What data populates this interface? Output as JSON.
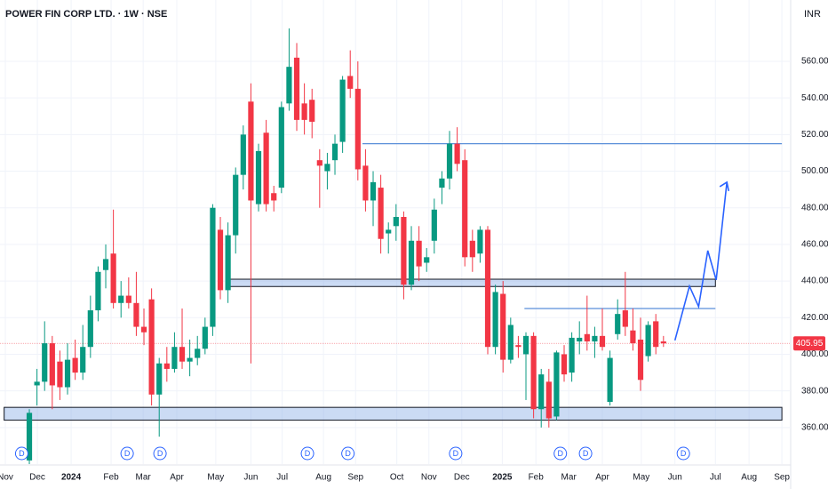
{
  "chart_data": {
    "type": "candlestick",
    "title": "POWER FIN CORP LTD. · 1W · NSE",
    "currency": "INR",
    "up_color": "#089981",
    "down_color": "#f23645",
    "open": [
      342,
      383,
      385,
      406,
      396,
      382,
      398,
      390,
      404,
      424,
      446,
      455,
      428,
      432,
      428,
      415,
      430,
      378,
      395,
      392,
      404,
      396,
      398,
      403,
      415,
      468,
      435,
      465,
      498,
      538,
      482,
      521,
      488,
      491,
      537,
      562,
      537,
      539,
      506,
      500,
      506,
      516,
      552,
      545,
      503,
      484,
      491,
      466,
      470,
      475,
      438,
      462,
      450,
      462,
      491,
      496,
      515,
      506,
      462,
      455,
      468,
      404,
      433,
      397,
      405,
      400,
      410,
      370,
      385,
      366,
      400,
      390,
      407,
      411,
      407,
      410,
      374,
      411,
      424,
      413,
      408,
      399,
      418,
      407
    ],
    "high": [
      370,
      392,
      418,
      410,
      402,
      406,
      408,
      416,
      432,
      448,
      460,
      479,
      440,
      442,
      445,
      425,
      436,
      398,
      404,
      412,
      425,
      408,
      410,
      420,
      482,
      475,
      472,
      502,
      525,
      548,
      515,
      528,
      492,
      538,
      578,
      570,
      548,
      545,
      512,
      510,
      520,
      552,
      566,
      560,
      512,
      500,
      498,
      472,
      482,
      478,
      470,
      470,
      458,
      485,
      500,
      522,
      524,
      512,
      468,
      470,
      470,
      438,
      440,
      420,
      410,
      412,
      412,
      392,
      392,
      402,
      405,
      412,
      418,
      432,
      415,
      425,
      402,
      430,
      445,
      425,
      420,
      418,
      422,
      410
    ],
    "low": [
      340,
      372,
      380,
      370,
      375,
      378,
      386,
      386,
      398,
      418,
      436,
      425,
      420,
      425,
      410,
      405,
      372,
      355,
      385,
      390,
      392,
      388,
      394,
      400,
      410,
      430,
      428,
      455,
      490,
      395,
      478,
      478,
      478,
      488,
      533,
      522,
      520,
      518,
      480,
      490,
      498,
      510,
      540,
      495,
      478,
      470,
      455,
      455,
      462,
      430,
      435,
      440,
      445,
      455,
      482,
      490,
      500,
      448,
      445,
      450,
      400,
      400,
      390,
      395,
      398,
      375,
      365,
      360,
      360,
      364,
      385,
      385,
      400,
      402,
      398,
      402,
      372,
      408,
      410,
      402,
      380,
      396,
      400,
      404
    ],
    "close": [
      368,
      385,
      406,
      383,
      382,
      397,
      390,
      404,
      424,
      445,
      452,
      428,
      432,
      428,
      415,
      412,
      378,
      395,
      392,
      404,
      396,
      398,
      403,
      415,
      480,
      435,
      465,
      498,
      520,
      484,
      511,
      482,
      484,
      535,
      557,
      528,
      528,
      527,
      503,
      504,
      515,
      550,
      545,
      501,
      484,
      494,
      463,
      468,
      475,
      438,
      462,
      448,
      453,
      479,
      496,
      515,
      504,
      453,
      453,
      468,
      404,
      434,
      397,
      416,
      404,
      410,
      370,
      389,
      365,
      401,
      389,
      409,
      409,
      407,
      410,
      404,
      398,
      422,
      415,
      406,
      386,
      416,
      404,
      405.95
    ],
    "last_price": 405.95,
    "zones": [
      {
        "low": 437,
        "high": 441,
        "from": 25.8,
        "to": 89.8
      },
      {
        "low": 364,
        "high": 371,
        "from": -3.3,
        "to": 98.5
      }
    ],
    "levels": [
      {
        "price": 515,
        "from": 43.6,
        "to": 98.5
      },
      {
        "price": 425,
        "from": 64.8,
        "to": 89.8
      }
    ],
    "projection": {
      "x": [
        84.5,
        86.4,
        87.6,
        88.8,
        89.9,
        91.3
      ],
      "y": [
        407.6,
        437.2,
        426,
        456.6,
        440.6,
        494
      ]
    },
    "dividend_label": "D",
    "dividend_weeks": [
      -1.0,
      12.8,
      17.1,
      36.4,
      41.7,
      55.8,
      69.5,
      72.8,
      85.6
    ],
    "xlim": [
      -3.84,
      99.65
    ],
    "ylim": [
      340,
      593.5
    ],
    "xticks": [
      {
        "value": -3.14,
        "label": "Nov"
      },
      {
        "value": 1.05,
        "label": "Dec"
      },
      {
        "value": 5.47,
        "label": "2024"
      },
      {
        "value": 10.7,
        "label": "Feb"
      },
      {
        "value": 14.9,
        "label": "Mar"
      },
      {
        "value": 19.3,
        "label": "Apr"
      },
      {
        "value": 24.4,
        "label": "May"
      },
      {
        "value": 29.0,
        "label": "Jun"
      },
      {
        "value": 33.1,
        "label": "Jul"
      },
      {
        "value": 38.5,
        "label": "Aug"
      },
      {
        "value": 42.7,
        "label": "Sep"
      },
      {
        "value": 48.1,
        "label": "Oct"
      },
      {
        "value": 52.3,
        "label": "Nov"
      },
      {
        "value": 56.6,
        "label": "Dec"
      },
      {
        "value": 61.9,
        "label": "2025"
      },
      {
        "value": 66.3,
        "label": "Feb"
      },
      {
        "value": 70.6,
        "label": "Mar"
      },
      {
        "value": 75.0,
        "label": "Apr"
      },
      {
        "value": 80.1,
        "label": "May"
      },
      {
        "value": 84.5,
        "label": "Jun"
      },
      {
        "value": 89.8,
        "label": "Jul"
      },
      {
        "value": 94.2,
        "label": "Aug"
      },
      {
        "value": 98.5,
        "label": "Sep"
      }
    ],
    "yticks": [
      {
        "value": 360,
        "label": "360.00"
      },
      {
        "value": 380,
        "label": "380.00"
      },
      {
        "value": 400,
        "label": "400.00"
      },
      {
        "value": 420,
        "label": "420.00"
      },
      {
        "value": 440,
        "label": "440.00"
      },
      {
        "value": 460,
        "label": "460.00"
      },
      {
        "value": 480,
        "label": "480.00"
      },
      {
        "value": 500,
        "label": "500.00"
      },
      {
        "value": 520,
        "label": "520.00"
      },
      {
        "value": 540,
        "label": "540.00"
      },
      {
        "value": 560,
        "label": "560.00"
      }
    ],
    "grid": true
  }
}
